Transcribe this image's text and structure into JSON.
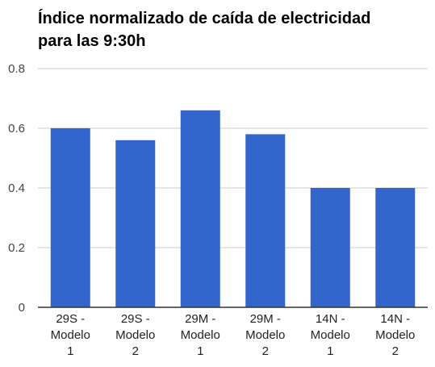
{
  "chart_data": {
    "type": "bar",
    "title": [
      "Índice normalizado de caída de electricidad",
      "para las 9:30h"
    ],
    "categories": [
      [
        "29S -",
        "Modelo",
        "1"
      ],
      [
        "29S -",
        "Modelo",
        "2"
      ],
      [
        "29M -",
        "Modelo",
        "1"
      ],
      [
        "29M -",
        "Modelo",
        "2"
      ],
      [
        "14N -",
        "Modelo",
        "1"
      ],
      [
        "14N -",
        "Modelo",
        "2"
      ]
    ],
    "values": [
      0.6,
      0.56,
      0.66,
      0.58,
      0.4,
      0.4
    ],
    "ylim": [
      0,
      0.8
    ],
    "yticks": [
      0,
      0.2,
      0.4,
      0.6,
      0.8
    ],
    "ytick_labels": [
      "0",
      "0.2",
      "0.4",
      "0.6",
      "0.8"
    ],
    "xlabel": "",
    "ylabel": "",
    "grid": true,
    "bar_color": "#3366cc",
    "grid_color": "#cccccc",
    "axis_color": "#333333"
  }
}
